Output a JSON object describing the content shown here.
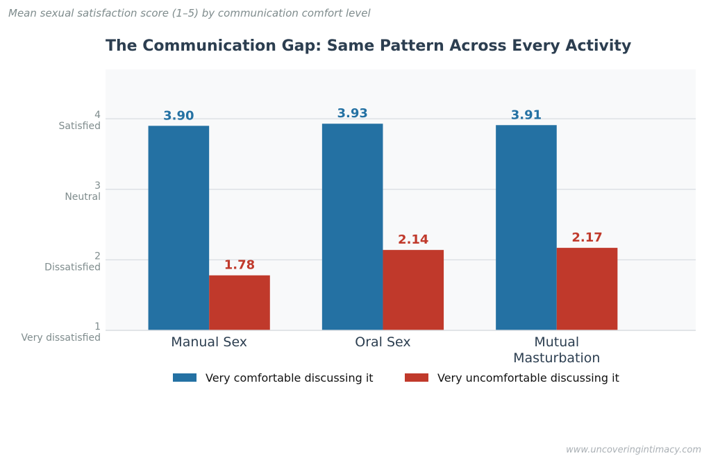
{
  "subtitle": "Mean sexual satisfaction score (1–5) by communication comfort level",
  "source": "www.uncoveringintimacy.com",
  "chart_data": {
    "type": "bar",
    "title": "The Communication Gap: Same Pattern Across Every Activity",
    "xlabel": "",
    "ylabel": "",
    "categories": [
      "Manual Sex",
      "Oral Sex",
      "Mutual Masturbation"
    ],
    "series": [
      {
        "name": "Very comfortable discussing it",
        "values": [
          3.9,
          3.93,
          3.91
        ],
        "color": "#2471a3",
        "labels": [
          "3.90",
          "3.93",
          "3.91"
        ]
      },
      {
        "name": "Very uncomfortable discussing it",
        "values": [
          1.78,
          2.14,
          2.17
        ],
        "color": "#c0392b",
        "labels": [
          "1.78",
          "2.14",
          "2.17"
        ]
      }
    ],
    "ylim": [
      1,
      4.7
    ],
    "yticks": [
      {
        "value": 1,
        "label": "1",
        "sublabel": "Very dissatisfied"
      },
      {
        "value": 2,
        "label": "2",
        "sublabel": "Dissatisfied"
      },
      {
        "value": 3,
        "label": "3",
        "sublabel": "Neutral"
      },
      {
        "value": 4,
        "label": "4",
        "sublabel": "Satisfied"
      }
    ],
    "grid": true,
    "legend": "bottom-center",
    "plot_background": "#f8f9fa"
  }
}
